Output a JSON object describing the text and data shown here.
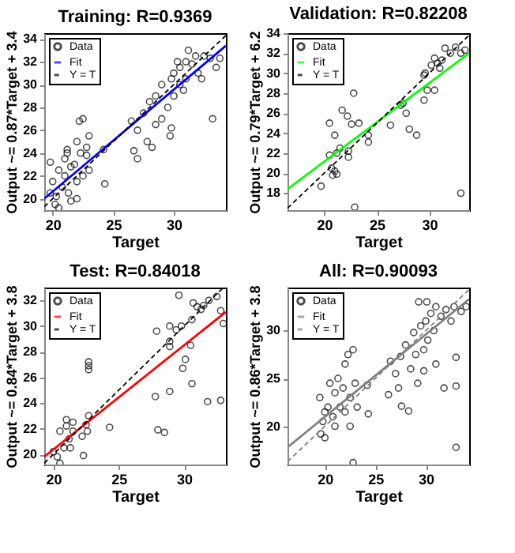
{
  "chart_data": [
    {
      "type": "scatter",
      "title": "Training: R=0.9369",
      "xlabel": "Target",
      "ylabel": "Output ~= 0.87*Target + 3.4",
      "xlim": [
        19.3,
        34.3
      ],
      "ylim": [
        19,
        34.5
      ],
      "xticks": [
        20,
        25,
        30
      ],
      "yticks": [
        20,
        22,
        24,
        26,
        28,
        30,
        32,
        34
      ],
      "grid": false,
      "legend": "top left",
      "series": [
        {
          "name": "Data",
          "color": "#000000",
          "type": "scatter",
          "marker": "circle",
          "x": [
            19.8,
            20,
            20.2,
            19.8,
            20.3,
            20.5,
            20.8,
            21,
            21,
            21.2,
            21.3,
            21.5,
            21.8,
            22,
            22,
            22.2,
            22.3,
            22.5,
            22.5,
            22.8,
            23,
            21.5,
            22,
            22.8,
            23,
            20.5,
            21.2,
            24.3,
            24.2,
            26.5,
            26.7,
            27,
            27,
            27.5,
            27.8,
            28,
            28.2,
            28.5,
            28.5,
            29,
            29,
            29.5,
            29.8,
            29.8,
            30,
            30,
            30.3,
            30.5,
            30.5,
            30.8,
            31,
            31,
            31.5,
            31.8,
            32,
            32.3,
            32.5,
            33,
            33.2,
            33.5,
            33.8,
            31.2,
            29.7
          ],
          "values": [
            20.5,
            21.5,
            19.5,
            23.2,
            20.2,
            22.5,
            21,
            23.5,
            22,
            24,
            20.5,
            22.8,
            23,
            21.5,
            25,
            26.8,
            24,
            22,
            27,
            23.8,
            22.5,
            19.8,
            20,
            24.5,
            25.5,
            19.2,
            24.3,
            21.3,
            24.3,
            26.8,
            24.2,
            23.5,
            26,
            27.5,
            25,
            28.5,
            24.5,
            26.5,
            29,
            27,
            30,
            28,
            30.5,
            26.2,
            29,
            31,
            32,
            30,
            31.5,
            29.5,
            32,
            30.5,
            31.8,
            32.5,
            31,
            30.5,
            32.5,
            32.3,
            27,
            31.5,
            32.3,
            33,
            25.5
          ]
        },
        {
          "name": "Fit",
          "color": "#0000ff",
          "type": "line",
          "line_style": "solid",
          "x": [
            19.3,
            34.3
          ],
          "values": [
            20.0,
            33.4
          ]
        },
        {
          "name": "Y = T",
          "color": "#000000",
          "type": "line",
          "line_style": "dashed",
          "x": [
            19.3,
            34.3
          ],
          "values": [
            19.3,
            34.3
          ]
        }
      ]
    },
    {
      "type": "scatter",
      "title": "Validation: R=0.82208",
      "xlabel": "Target",
      "ylabel": "Output ~= 0.79*Target + 6.2",
      "xlim": [
        16.5,
        33.8
      ],
      "ylim": [
        16.3,
        34
      ],
      "xticks": [
        20,
        25,
        30
      ],
      "yticks": [
        18,
        20,
        22,
        24,
        26,
        28,
        30,
        32,
        34
      ],
      "grid": false,
      "legend": "top left",
      "series": [
        {
          "name": "Data",
          "color": "#000000",
          "type": "scatter",
          "marker": "circle",
          "x": [
            19.7,
            20.5,
            20.5,
            20.7,
            20.8,
            21,
            21,
            21.2,
            21.2,
            21.5,
            21.7,
            22.2,
            22.3,
            22.3,
            22.6,
            22.8,
            22.9,
            23.3,
            24.2,
            24.2,
            26.3,
            27.3,
            27.5,
            27.8,
            28.1,
            28.8,
            29.5,
            29.6,
            29.8,
            30.2,
            30.5,
            30.5,
            30.8,
            31.2,
            31.5,
            32,
            32.5,
            33,
            33.4,
            33,
            29.5,
            31
          ],
          "values": [
            18.7,
            21.8,
            25,
            20.5,
            19.8,
            20.2,
            23.8,
            22,
            19.9,
            22.5,
            26.3,
            25.7,
            22.2,
            21.6,
            24.9,
            28,
            16.6,
            25,
            23.8,
            23.1,
            24.8,
            26.8,
            27,
            26,
            24.4,
            23.8,
            27.3,
            30,
            28.3,
            30.8,
            28.3,
            31.5,
            31,
            31.3,
            32.5,
            32,
            32.6,
            32,
            32.3,
            18,
            29.8,
            30.5
          ]
        },
        {
          "name": "Fit",
          "color": "#00ff00",
          "type": "line",
          "line_style": "solid",
          "x": [
            16.5,
            33.8
          ],
          "values": [
            18.4,
            32.0
          ]
        },
        {
          "name": "Y = T",
          "color": "#000000",
          "type": "line",
          "line_style": "dashed",
          "x": [
            16.5,
            33.8
          ],
          "values": [
            16.5,
            33.8
          ]
        }
      ]
    },
    {
      "type": "scatter",
      "title": "Test: R=0.84018",
      "xlabel": "Target",
      "ylabel": "Output ~= 0.84*Target + 3.8",
      "xlim": [
        19.3,
        33.2
      ],
      "ylim": [
        19.2,
        33
      ],
      "xticks": [
        20,
        25,
        30
      ],
      "yticks": [
        20,
        22,
        24,
        26,
        28,
        30,
        32
      ],
      "grid": false,
      "legend": "top left",
      "series": [
        {
          "name": "Data",
          "color": "#000000",
          "type": "scatter",
          "marker": "circle",
          "x": [
            20,
            20.3,
            20.5,
            20.5,
            20.8,
            21,
            21,
            21.2,
            21.3,
            21.5,
            21.5,
            22.2,
            22.3,
            22.5,
            22.6,
            22.7,
            22.7,
            22.7,
            22.7,
            24.3,
            27.8,
            27.9,
            28,
            28.5,
            28.9,
            28.9,
            28.9,
            28.9,
            29.4,
            29.6,
            29.8,
            29.9,
            30.1,
            30.5,
            30.6,
            30.6,
            30.7,
            31,
            31.3,
            31.5,
            31.8,
            31.9,
            32.5,
            32.8,
            32.8,
            33
          ],
          "values": [
            20.2,
            19.8,
            21.8,
            19.3,
            20.5,
            22.2,
            22.7,
            21.2,
            20.5,
            21.8,
            22.5,
            21.4,
            19.9,
            22.3,
            21.8,
            23,
            26.6,
            26.9,
            27.2,
            22.1,
            24.5,
            29.6,
            21.9,
            21.7,
            24.9,
            28.4,
            28.8,
            30,
            29.7,
            32.4,
            30,
            26.7,
            27.4,
            28.5,
            30.5,
            25.5,
            31.8,
            31.5,
            31.3,
            31.6,
            24.1,
            32,
            32.3,
            24.2,
            31.2,
            30.2
          ]
        },
        {
          "name": "Fit",
          "color": "#ff0000",
          "type": "line",
          "line_style": "solid",
          "x": [
            19.3,
            33.2
          ],
          "values": [
            19.8,
            31.1
          ]
        },
        {
          "name": "Y = T",
          "color": "#000000",
          "type": "line",
          "line_style": "dashed",
          "x": [
            19.3,
            33.0
          ],
          "values": [
            19.3,
            33.0
          ]
        }
      ]
    },
    {
      "type": "scatter",
      "title": "All: R=0.90093",
      "xlabel": "Target",
      "ylabel": "Output ~= 0.86*Target + 3.8",
      "xlim": [
        16.3,
        34.3
      ],
      "ylim": [
        16,
        34.5
      ],
      "xticks": [
        20,
        25,
        30
      ],
      "yticks": [
        20,
        25,
        30
      ],
      "grid": false,
      "legend": "top left",
      "series": [
        {
          "name": "Data",
          "color": "#000000",
          "type": "scatter",
          "marker": "circle",
          "x": [
            19.5,
            19.6,
            19.8,
            20,
            20,
            20.3,
            20.5,
            20.8,
            21,
            21,
            21.3,
            21.5,
            21.8,
            22,
            22,
            22.3,
            22.5,
            22.5,
            22.8,
            22.8,
            23,
            23.2,
            24.2,
            24.3,
            26.3,
            26.5,
            27,
            27.3,
            27.5,
            27.6,
            28,
            28.3,
            28.5,
            28.8,
            29,
            29.2,
            29.5,
            29.8,
            29.8,
            30,
            30.2,
            30.5,
            30.8,
            31,
            31,
            31.5,
            31.8,
            32,
            32.5,
            32.8,
            33,
            33,
            33,
            33.5,
            34,
            29.3,
            30.1
          ],
          "values": [
            23,
            19.2,
            20.5,
            21.5,
            18.8,
            22,
            24.5,
            21,
            23.5,
            20,
            25,
            22,
            24,
            21.5,
            26.5,
            27.5,
            23,
            20,
            28,
            16.2,
            24.5,
            22,
            24.3,
            21.3,
            23.3,
            26.8,
            25.5,
            24,
            27.3,
            22.1,
            28.5,
            21.6,
            26,
            29.8,
            27.5,
            24.5,
            30.5,
            28,
            25.8,
            31,
            29,
            31.8,
            30,
            32.5,
            26.5,
            31.5,
            24,
            32.2,
            31,
            32.5,
            27.2,
            24.2,
            17.8,
            32,
            32.5,
            33,
            33
          ]
        },
        {
          "name": "Fit",
          "color": "#808080",
          "type": "line",
          "line_style": "solid",
          "x": [
            16.3,
            34.3
          ],
          "values": [
            17.8,
            33.3
          ]
        },
        {
          "name": "Y = T",
          "color": "#808080",
          "type": "line",
          "line_style": "dashed",
          "x": [
            16.3,
            34.3
          ],
          "values": [
            16.3,
            34.3
          ]
        }
      ]
    }
  ]
}
